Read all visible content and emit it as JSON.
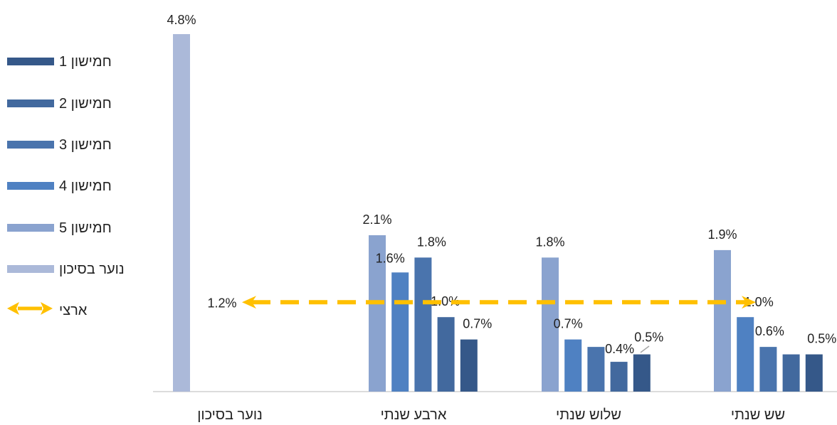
{
  "chart_data": {
    "type": "bar",
    "title": "",
    "xlabel": "",
    "ylabel": "",
    "ylim": [
      0,
      4.8
    ],
    "grid": false,
    "legend_position": "left",
    "categories": [
      "נוער בסיכון",
      "ארבע שנתי",
      "שלוש שנתי",
      "שש שנתי"
    ],
    "series": [
      {
        "name": "נוער בסיכון",
        "color": "#abb9d9",
        "values": [
          4.8,
          null,
          null,
          null
        ],
        "labels": [
          "4.8%",
          "",
          "",
          ""
        ]
      },
      {
        "name": "חמישון 5",
        "color": "#8aa3cf",
        "values": [
          null,
          2.1,
          1.8,
          1.9
        ],
        "labels": [
          "",
          "2.1%",
          "1.8%",
          "1.9%"
        ]
      },
      {
        "name": "חמישון 4",
        "color": "#4f81c2",
        "values": [
          null,
          1.6,
          0.7,
          1.0
        ],
        "labels": [
          "",
          "1.6%",
          "0.7%",
          "1.0%"
        ]
      },
      {
        "name": "חמישון 3",
        "color": "#4a74ad",
        "values": [
          null,
          1.8,
          0.6,
          0.6
        ],
        "labels": [
          "",
          "1.8%",
          "",
          "0.6%"
        ]
      },
      {
        "name": "חמישון 2",
        "color": "#42699e",
        "values": [
          null,
          1.0,
          0.4,
          0.5
        ],
        "labels": [
          "",
          "1.0%",
          "0.4%",
          ""
        ]
      },
      {
        "name": "חמישון 1",
        "color": "#355889",
        "values": [
          null,
          0.7,
          0.5,
          0.5
        ],
        "labels": [
          "",
          "0.7%",
          "0.5%",
          "0.5%"
        ]
      }
    ],
    "reference_line": {
      "name": "ארצי",
      "value": 1.2,
      "label": "1.2%",
      "color": "#ffc000",
      "style": "dashed, arrows both ends"
    },
    "legend": [
      "חמישון 1",
      "חמישון 2",
      "חמישון 3",
      "חמישון 4",
      "חמישון 5",
      "נוער בסיכון",
      "ארצי"
    ]
  }
}
